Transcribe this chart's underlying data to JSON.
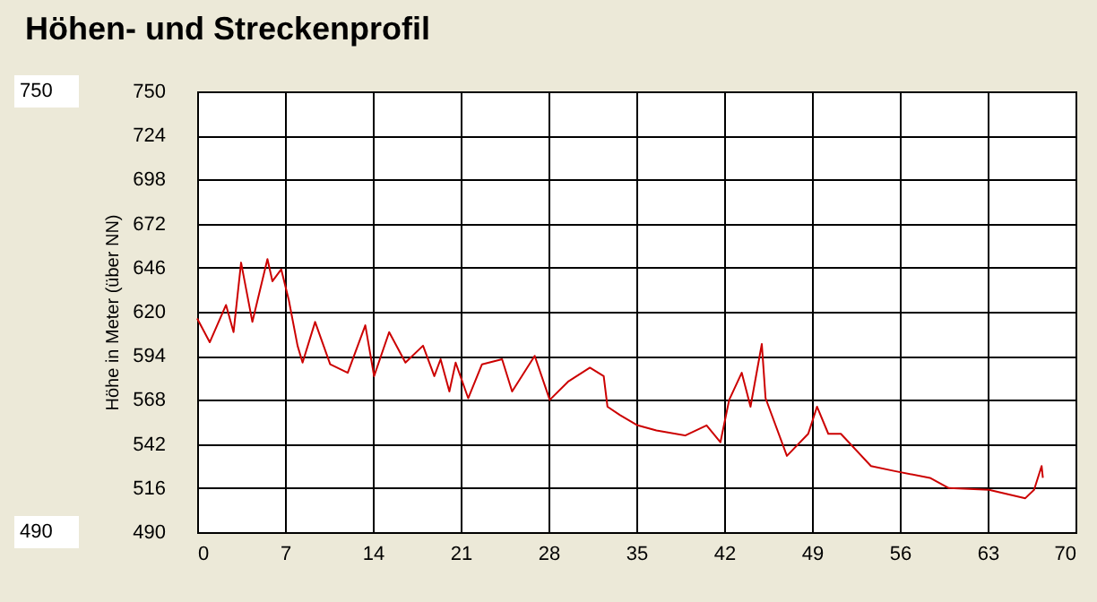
{
  "chart_data": {
    "type": "line",
    "title": "Höhen- und Streckenprofil",
    "ylabel": "Höhe in Meter (über NN)",
    "x": [
      0,
      1.0,
      2.3,
      2.9,
      3.5,
      4.4,
      5.6,
      6.0,
      6.7,
      7.3,
      8.0,
      8.4,
      9.4,
      10.6,
      12.0,
      13.4,
      14.1,
      15.3,
      16.6,
      18.0,
      18.9,
      19.4,
      20.1,
      20.6,
      21.6,
      22.7,
      24.3,
      25.1,
      26.9,
      28.1,
      29.6,
      31.3,
      32.4,
      32.7,
      33.7,
      35.1,
      36.6,
      38.9,
      40.6,
      41.7,
      42.4,
      43.4,
      44.1,
      45.0,
      45.3,
      47.0,
      48.7,
      49.4,
      50.3,
      51.3,
      53.7,
      55.6,
      58.4,
      59.9,
      63.1,
      66.0,
      66.7,
      67.3,
      67.4
    ],
    "series": [
      {
        "color": "#cc0000",
        "values": [
          616,
          602,
          624,
          608,
          649,
          614,
          651,
          638,
          645,
          627,
          600,
          590,
          614,
          589,
          584,
          612,
          582,
          608,
          590,
          600,
          582,
          592,
          573,
          590,
          569,
          589,
          592,
          573,
          594,
          568,
          579,
          587,
          582,
          564,
          559,
          553,
          550,
          547,
          553,
          543,
          568,
          584,
          564,
          601,
          569,
          535,
          548,
          564,
          548,
          548,
          529,
          526,
          522,
          516,
          515,
          510,
          515,
          529,
          522
        ]
      }
    ],
    "xlim": [
      0,
      70
    ],
    "xticks": [
      0,
      7,
      14,
      21,
      28,
      35,
      42,
      49,
      56,
      63,
      70
    ],
    "ylim": [
      490,
      750
    ],
    "yticks": [
      490,
      516,
      542,
      568,
      594,
      620,
      646,
      672,
      698,
      724,
      750
    ],
    "grid": true,
    "legend": false,
    "marker": "none",
    "line_style": "solid",
    "annotations": [
      "750",
      "490"
    ]
  }
}
